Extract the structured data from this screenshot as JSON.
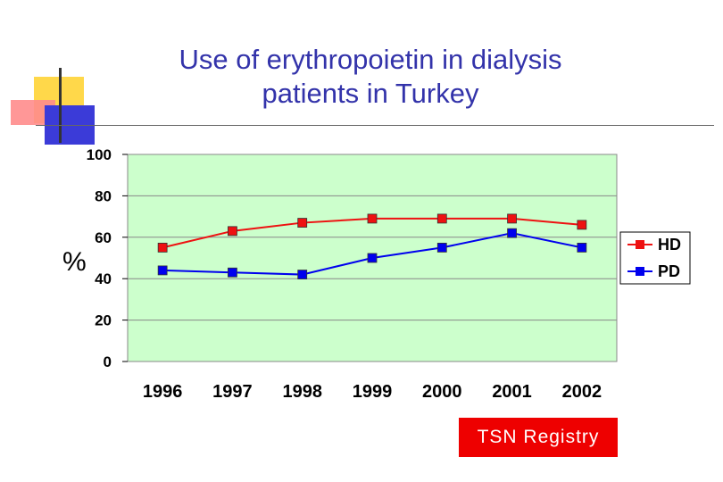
{
  "slide": {
    "title_line1": "Use of erythropoietin in dialysis",
    "title_line2": "patients in Turkey",
    "footer": "TSN  Registry"
  },
  "colors": {
    "title": "#3333aa",
    "plot_bg": "#ccffcc",
    "hd": "#ee1111",
    "pd": "#0000ee",
    "footer_bg": "#ee0000"
  },
  "chart_data": {
    "type": "line",
    "title": "Use of erythropoietin in dialysis patients in Turkey",
    "xlabel": "",
    "ylabel": "%",
    "ylim": [
      0,
      100
    ],
    "yticks": [
      0,
      20,
      40,
      60,
      80,
      100
    ],
    "categories": [
      "1996",
      "1997",
      "1998",
      "1999",
      "2000",
      "2001",
      "2002"
    ],
    "series": [
      {
        "name": "HD",
        "color": "#ee1111",
        "values": [
          55,
          63,
          67,
          69,
          69,
          69,
          66
        ]
      },
      {
        "name": "PD",
        "color": "#0000ee",
        "values": [
          44,
          43,
          42,
          50,
          55,
          62,
          55
        ]
      }
    ],
    "grid": true,
    "legend": "right"
  }
}
